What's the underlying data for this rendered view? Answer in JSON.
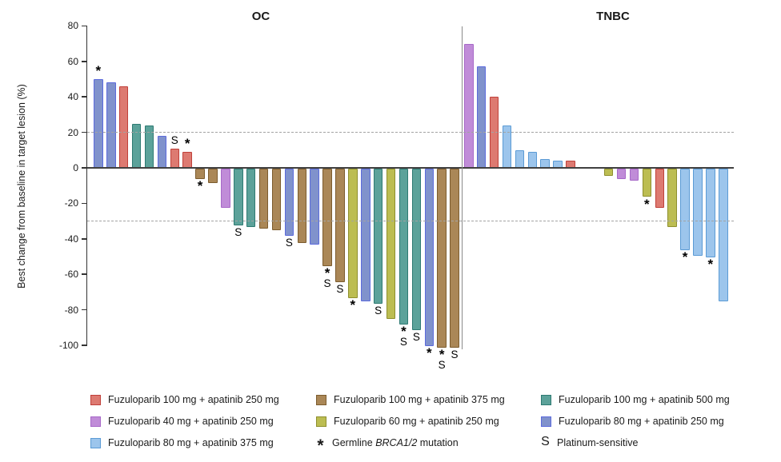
{
  "chart_data": {
    "type": "bar",
    "subtype": "waterfall",
    "title": "",
    "ylabel": "Best change from baseline in target lesion (%)",
    "ylim": [
      -100,
      80
    ],
    "yticks": [
      80,
      60,
      40,
      20,
      0,
      -20,
      -40,
      -60,
      -80,
      -100
    ],
    "reference_lines_y": [
      20,
      -30
    ],
    "grid": "off",
    "legend_position": "bottom",
    "groups": {
      "red": {
        "label": "Fuzuloparib 100 mg + apatinib 250 mg",
        "fill": "#dd7a71",
        "stroke": "#c0403a"
      },
      "purple": {
        "label": "Fuzuloparib 40 mg + apatinib 250 mg",
        "fill": "#c08cd8",
        "stroke": "#a768c8"
      },
      "lightblue": {
        "label": "Fuzuloparib 80 mg + apatinib 375 mg",
        "fill": "#9cc5ec",
        "stroke": "#5b9bd5"
      },
      "brown": {
        "label": "Fuzuloparib 100 mg + apatinib 375 mg",
        "fill": "#aa8757",
        "stroke": "#7c5c2e"
      },
      "yellow": {
        "label": "Fuzuloparib 60 mg + apatinib 250 mg",
        "fill": "#bcbd52",
        "stroke": "#8e8f2e"
      },
      "teal": {
        "label": "Fuzuloparib 100 mg + apatinib 500 mg",
        "fill": "#5ca29a",
        "stroke": "#2e7a72"
      },
      "blue": {
        "label": "Fuzuloparib 80 mg + apatinib 250 mg",
        "fill": "#8092cc",
        "stroke": "#5c6bdd"
      }
    },
    "marker_meanings": {
      "*": "Germline BRCA1/2 mutation",
      "S": "Platinum-sensitive"
    },
    "panels": [
      {
        "title": "OC",
        "bars": [
          {
            "v": 50,
            "c": "blue",
            "m": "*"
          },
          {
            "v": 48,
            "c": "blue",
            "m": ""
          },
          {
            "v": 46,
            "c": "red",
            "m": ""
          },
          {
            "v": 25,
            "c": "teal",
            "m": ""
          },
          {
            "v": 24,
            "c": "teal",
            "m": ""
          },
          {
            "v": 18,
            "c": "blue",
            "m": ""
          },
          {
            "v": 11,
            "c": "red",
            "m": "S"
          },
          {
            "v": 9,
            "c": "red",
            "m": "*"
          },
          {
            "v": -6,
            "c": "brown",
            "m": "*"
          },
          {
            "v": -8,
            "c": "brown",
            "m": ""
          },
          {
            "v": -22,
            "c": "purple",
            "m": ""
          },
          {
            "v": -32,
            "c": "teal",
            "m": "S"
          },
          {
            "v": -33,
            "c": "teal",
            "m": ""
          },
          {
            "v": -34,
            "c": "brown",
            "m": ""
          },
          {
            "v": -35,
            "c": "brown",
            "m": ""
          },
          {
            "v": -38,
            "c": "blue",
            "m": "S"
          },
          {
            "v": -42,
            "c": "brown",
            "m": ""
          },
          {
            "v": -43,
            "c": "blue",
            "m": ""
          },
          {
            "v": -55,
            "c": "brown",
            "m": "*S"
          },
          {
            "v": -64,
            "c": "brown",
            "m": "S"
          },
          {
            "v": -73,
            "c": "yellow",
            "m": "*"
          },
          {
            "v": -75,
            "c": "blue",
            "m": ""
          },
          {
            "v": -76,
            "c": "teal",
            "m": "S"
          },
          {
            "v": -85,
            "c": "yellow",
            "m": ""
          },
          {
            "v": -88,
            "c": "teal",
            "m": "*S"
          },
          {
            "v": -91,
            "c": "teal",
            "m": "S"
          },
          {
            "v": -100,
            "c": "blue",
            "m": "*"
          },
          {
            "v": -101,
            "c": "brown",
            "m": "*S"
          },
          {
            "v": -101,
            "c": "brown",
            "m": "S"
          }
        ]
      },
      {
        "title": "TNBC",
        "bars": [
          {
            "v": 70,
            "c": "purple",
            "m": ""
          },
          {
            "v": 57,
            "c": "blue",
            "m": ""
          },
          {
            "v": 40,
            "c": "red",
            "m": ""
          },
          {
            "v": 24,
            "c": "lightblue",
            "m": ""
          },
          {
            "v": 10,
            "c": "lightblue",
            "m": ""
          },
          {
            "v": 9,
            "c": "lightblue",
            "m": ""
          },
          {
            "v": 5,
            "c": "lightblue",
            "m": ""
          },
          {
            "v": 4,
            "c": "lightblue",
            "m": ""
          },
          {
            "v": 4,
            "c": "red",
            "m": ""
          },
          {
            "v": 0,
            "c": null,
            "m": ""
          },
          {
            "v": 0,
            "c": null,
            "m": ""
          },
          {
            "v": -4,
            "c": "yellow",
            "m": ""
          },
          {
            "v": -6,
            "c": "purple",
            "m": ""
          },
          {
            "v": -7,
            "c": "purple",
            "m": ""
          },
          {
            "v": -16,
            "c": "yellow",
            "m": "*"
          },
          {
            "v": -22,
            "c": "red",
            "m": ""
          },
          {
            "v": -33,
            "c": "yellow",
            "m": ""
          },
          {
            "v": -46,
            "c": "lightblue",
            "m": "*"
          },
          {
            "v": -49,
            "c": "lightblue",
            "m": ""
          },
          {
            "v": -50,
            "c": "lightblue",
            "m": "*"
          },
          {
            "v": -75,
            "c": "lightblue",
            "m": ""
          }
        ]
      }
    ]
  },
  "legend": {
    "columns": [
      [
        {
          "group": "red"
        },
        {
          "group": "purple"
        },
        {
          "group": "lightblue"
        }
      ],
      [
        {
          "group": "brown"
        },
        {
          "group": "yellow"
        },
        {
          "symbol": "*",
          "label_prefix": "Germline ",
          "label_italic": "BRCA1/2",
          "label_suffix": " mutation"
        }
      ],
      [
        {
          "group": "teal"
        },
        {
          "group": "blue"
        },
        {
          "symbol": "S",
          "label": "Platinum-sensitive"
        }
      ]
    ]
  }
}
